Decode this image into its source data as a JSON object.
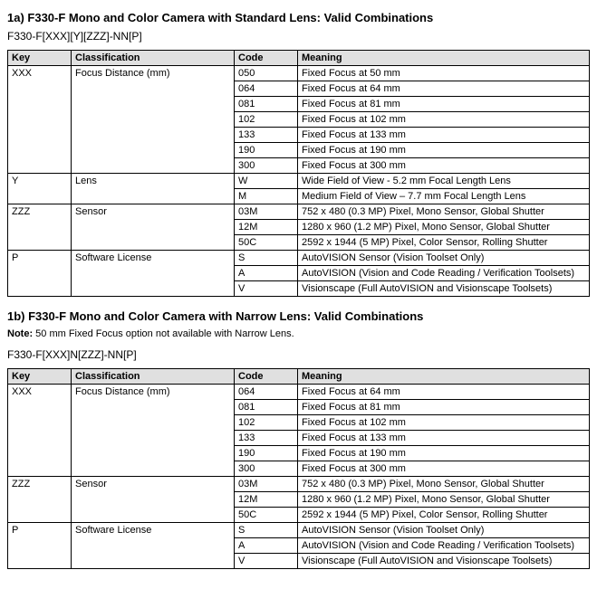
{
  "section1": {
    "title": "1a) F330-F Mono and Color Camera with Standard Lens: Valid Combinations",
    "pattern": "F330-F[XXX][Y][ZZZ]-NN[P]",
    "headers": {
      "key": "Key",
      "classification": "Classification",
      "code": "Code",
      "meaning": "Meaning"
    },
    "groups": [
      {
        "key": "XXX",
        "classification": "Focus Distance (mm)",
        "rows": [
          {
            "code": "050",
            "meaning": "Fixed Focus at 50 mm"
          },
          {
            "code": "064",
            "meaning": "Fixed Focus at 64 mm"
          },
          {
            "code": "081",
            "meaning": "Fixed Focus at 81 mm"
          },
          {
            "code": "102",
            "meaning": "Fixed Focus at 102 mm"
          },
          {
            "code": "133",
            "meaning": "Fixed Focus at 133 mm"
          },
          {
            "code": "190",
            "meaning": "Fixed Focus at 190 mm"
          },
          {
            "code": "300",
            "meaning": "Fixed Focus at 300 mm"
          }
        ]
      },
      {
        "key": "Y",
        "classification": "Lens",
        "rows": [
          {
            "code": "W",
            "meaning": "Wide Field of View - 5.2 mm Focal Length Lens"
          },
          {
            "code": "M",
            "meaning": "Medium Field of View – 7.7 mm Focal Length Lens"
          }
        ]
      },
      {
        "key": "ZZZ",
        "classification": "Sensor",
        "rows": [
          {
            "code": "03M",
            "meaning": "752 x 480 (0.3 MP) Pixel, Mono Sensor, Global Shutter"
          },
          {
            "code": "12M",
            "meaning": "1280 x 960 (1.2 MP) Pixel, Mono Sensor, Global Shutter"
          },
          {
            "code": "50C",
            "meaning": "2592 x 1944 (5 MP) Pixel, Color Sensor, Rolling Shutter"
          }
        ]
      },
      {
        "key": "P",
        "classification": "Software License",
        "rows": [
          {
            "code": "S",
            "meaning": "AutoVISION Sensor (Vision Toolset Only)"
          },
          {
            "code": "A",
            "meaning": "AutoVISION (Vision and Code Reading / Verification Toolsets)"
          },
          {
            "code": "V",
            "meaning": "Visionscape (Full AutoVISION and Visionscape Toolsets)"
          }
        ]
      }
    ]
  },
  "section2": {
    "title": "1b) F330-F Mono and Color Camera with Narrow Lens: Valid Combinations",
    "note_label": "Note:",
    "note_text": " 50 mm Fixed Focus option not available with Narrow Lens.",
    "pattern": "F330-F[XXX]N[ZZZ]-NN[P]",
    "headers": {
      "key": "Key",
      "classification": "Classification",
      "code": "Code",
      "meaning": "Meaning"
    },
    "groups": [
      {
        "key": "XXX",
        "classification": "Focus Distance (mm)",
        "rows": [
          {
            "code": "064",
            "meaning": "Fixed Focus at 64 mm"
          },
          {
            "code": "081",
            "meaning": "Fixed Focus at 81 mm"
          },
          {
            "code": "102",
            "meaning": "Fixed Focus at 102 mm"
          },
          {
            "code": "133",
            "meaning": "Fixed Focus at 133 mm"
          },
          {
            "code": "190",
            "meaning": "Fixed Focus at 190 mm"
          },
          {
            "code": "300",
            "meaning": "Fixed Focus at 300 mm"
          }
        ]
      },
      {
        "key": "ZZZ",
        "classification": "Sensor",
        "rows": [
          {
            "code": "03M",
            "meaning": "752 x 480 (0.3 MP) Pixel, Mono Sensor, Global Shutter"
          },
          {
            "code": "12M",
            "meaning": "1280 x 960 (1.2 MP) Pixel, Mono Sensor, Global Shutter"
          },
          {
            "code": "50C",
            "meaning": "2592 x 1944 (5 MP) Pixel, Color Sensor, Rolling Shutter"
          }
        ]
      },
      {
        "key": "P",
        "classification": "Software License",
        "rows": [
          {
            "code": "S",
            "meaning": "AutoVISION Sensor (Vision Toolset Only)"
          },
          {
            "code": "A",
            "meaning": "AutoVISION (Vision and Code Reading / Verification Toolsets)"
          },
          {
            "code": "V",
            "meaning": "Visionscape (Full AutoVISION and Visionscape Toolsets)"
          }
        ]
      }
    ]
  },
  "style": {
    "header_bg": "#e0e0e0",
    "border_color": "#000000",
    "text_color": "#000000",
    "body_font_size": 11,
    "title_font_size": 13
  }
}
